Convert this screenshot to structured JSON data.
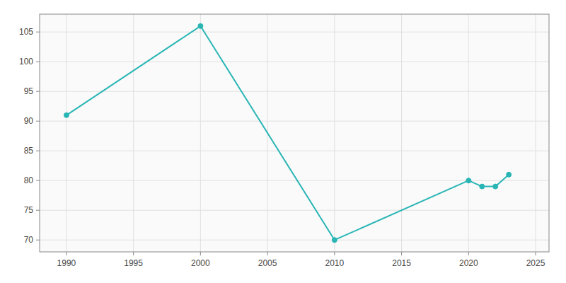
{
  "chart_data": {
    "type": "line",
    "x": [
      1990,
      2000,
      2010,
      2020,
      2021,
      2022,
      2023
    ],
    "values": [
      91,
      106,
      70,
      80,
      79,
      79,
      81
    ],
    "color": "#2ab5b5",
    "marker": "circle",
    "xlim": [
      1988,
      2026
    ],
    "ylim": [
      68,
      108
    ],
    "xticks": [
      1990,
      1995,
      2000,
      2005,
      2010,
      2015,
      2020,
      2025
    ],
    "yticks": [
      70,
      75,
      80,
      85,
      90,
      95,
      100,
      105
    ],
    "grid": true
  }
}
